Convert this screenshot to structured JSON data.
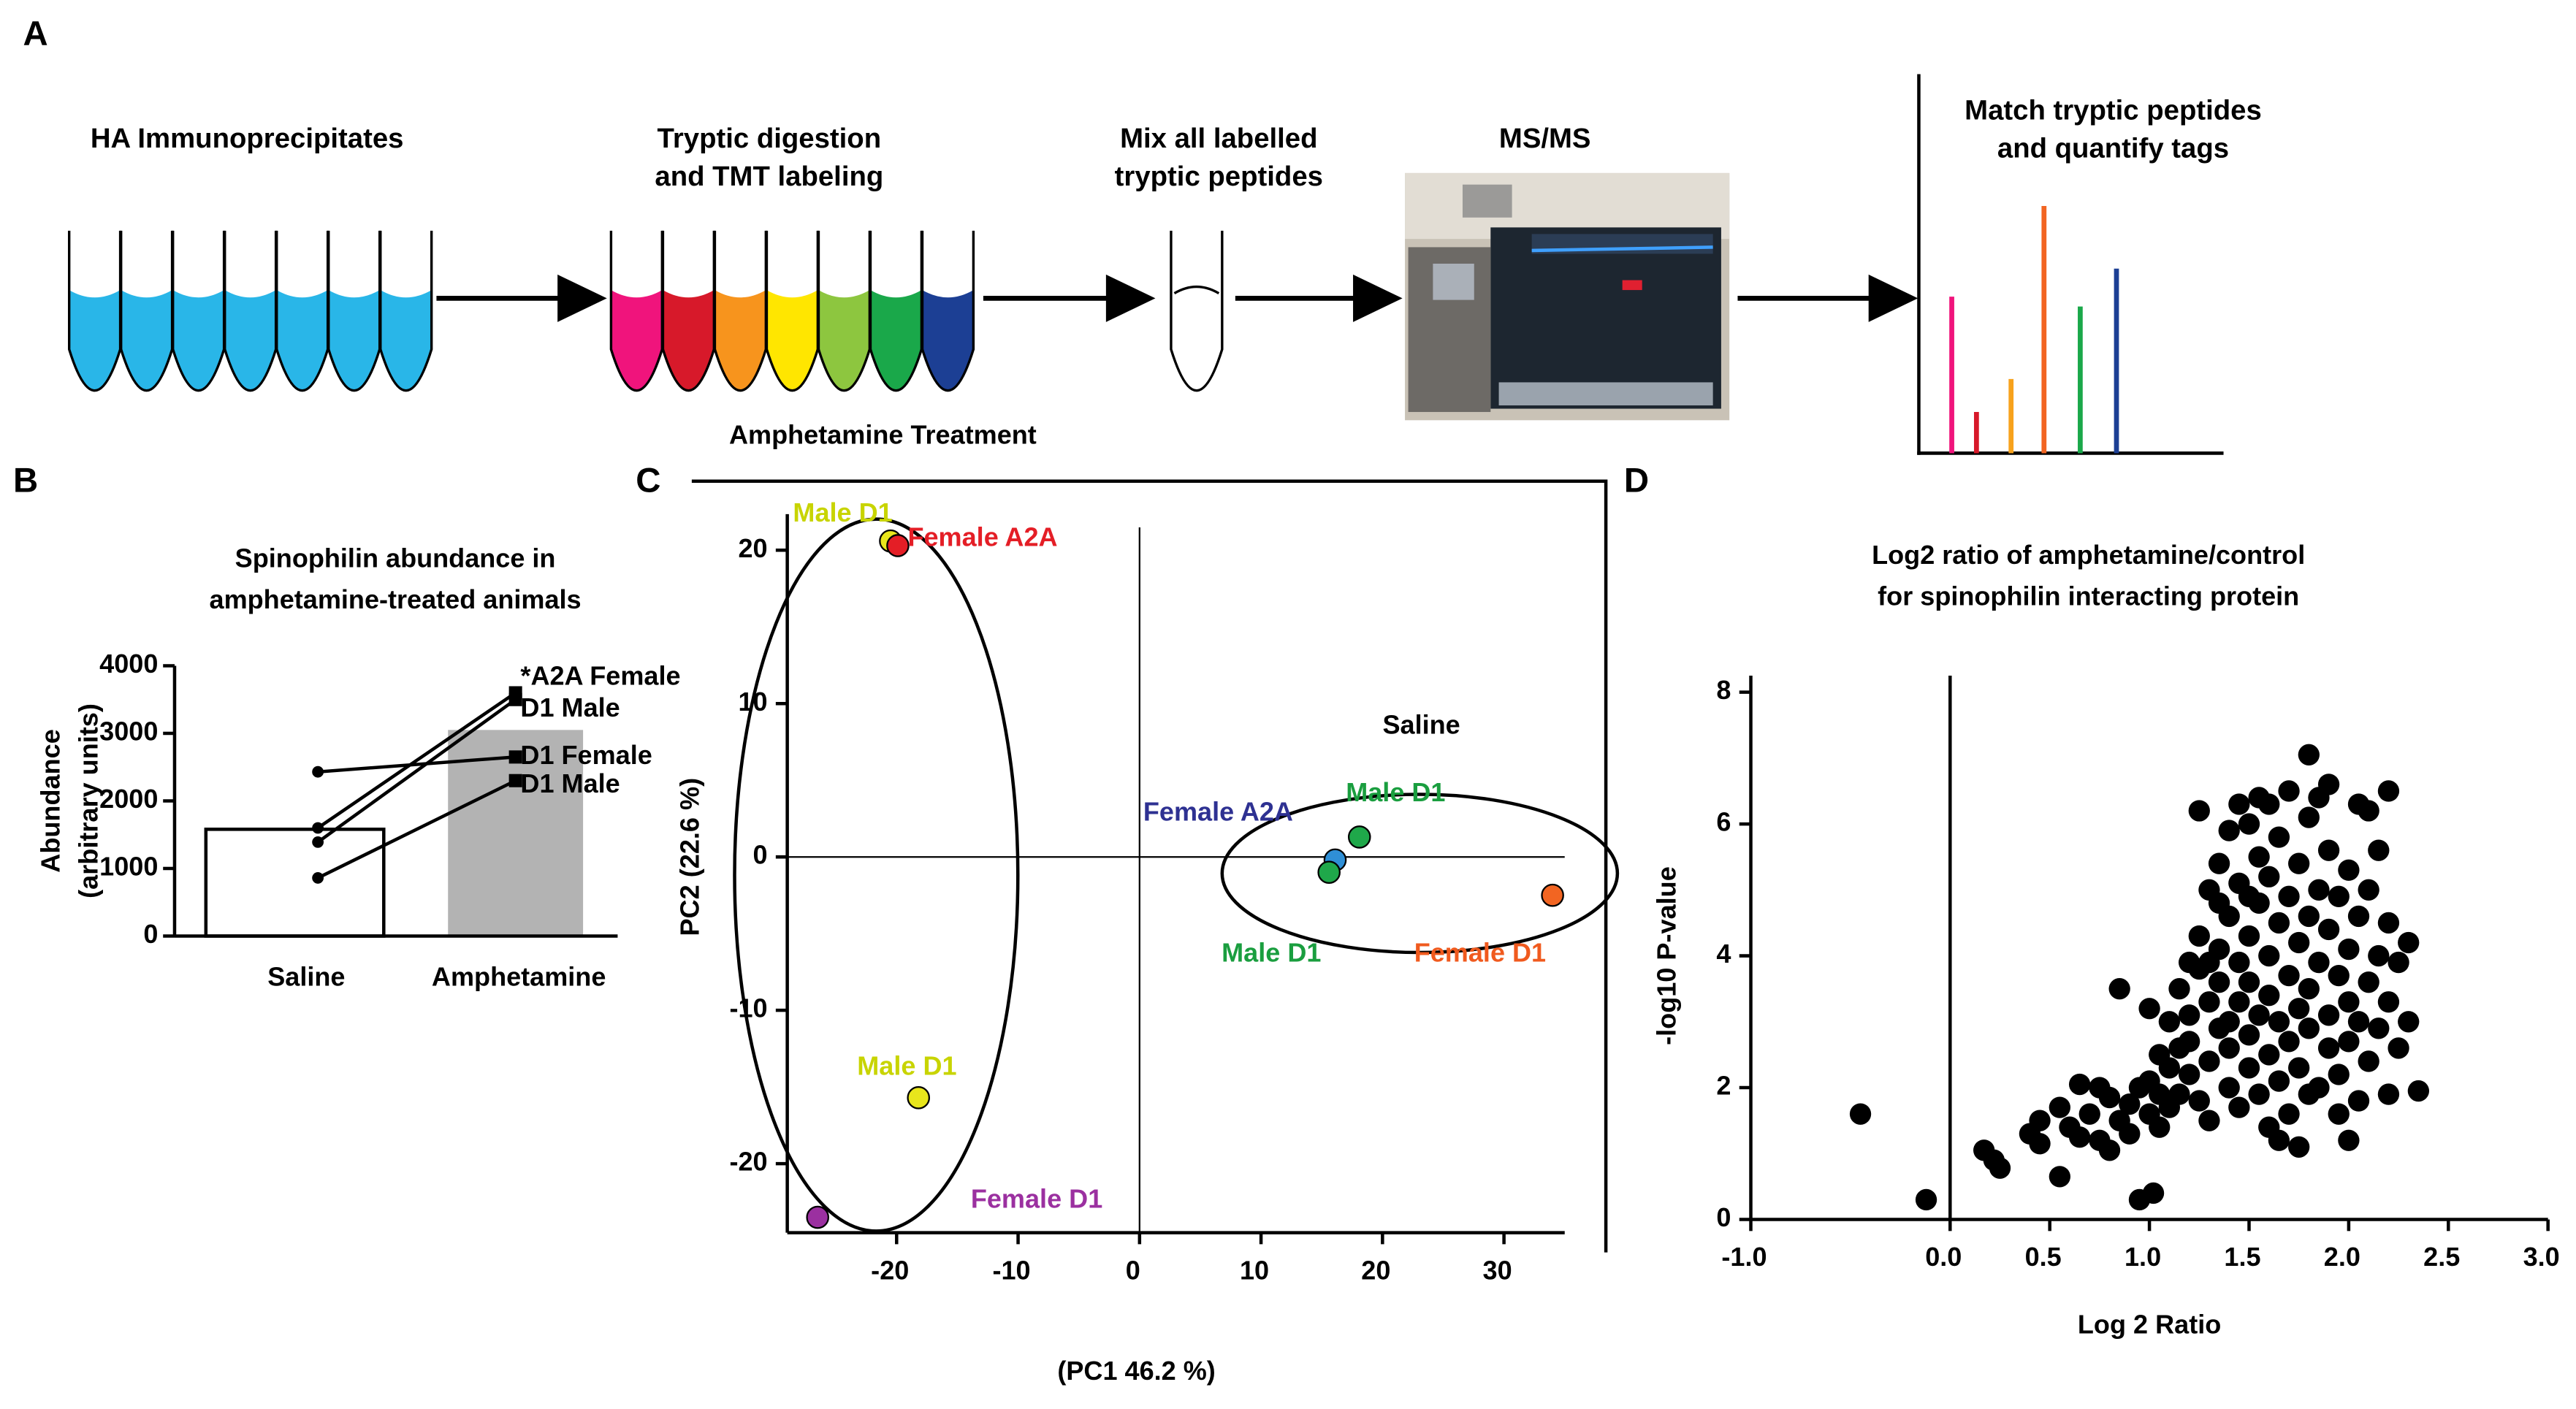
{
  "panel_labels": [
    "A",
    "B",
    "C",
    "D"
  ],
  "workflow": {
    "steps": [
      {
        "label": [
          "HA Immunoprecipitates"
        ]
      },
      {
        "label": [
          "Tryptic digestion",
          "and TMT labeling"
        ]
      },
      {
        "label": [
          "Mix all labelled",
          "tryptic peptides"
        ]
      },
      {
        "label": [
          "MS/MS"
        ]
      },
      {
        "label": [
          "Match tryptic peptides",
          "and quantify tags"
        ]
      }
    ]
  },
  "chart_data": [
    {
      "type": "bar",
      "title": [
        "Spinophilin abundance in",
        "amphetamine-treated animals"
      ],
      "ylabel": [
        "Abundance",
        "(arbitrary units)"
      ],
      "categories": [
        "Saline",
        "Amphetamine"
      ],
      "values": [
        1580,
        3050
      ],
      "colors": [
        "#ffffff",
        "#b3b3b3"
      ],
      "ylim": [
        0,
        4000
      ],
      "yticks": [
        0,
        1000,
        2000,
        3000,
        4000
      ],
      "series": [
        {
          "name": "*A2A Female",
          "values": [
            1600,
            3600
          ]
        },
        {
          "name": "D1 Male",
          "values": [
            1390,
            3500
          ]
        },
        {
          "name": "D1 Female",
          "values": [
            2430,
            2650
          ]
        },
        {
          "name": "D1 Male",
          "values": [
            860,
            2300
          ]
        }
      ]
    },
    {
      "type": "scatter",
      "xlabel": "(PC1 46.2 %)",
      "ylabel": "PC2 (22.6 %)",
      "annotations": [
        "Amphetamine Treatment",
        "Saline"
      ],
      "xlim": [
        -29,
        35
      ],
      "ylim": [
        -24.5,
        24.5
      ],
      "xticks": [
        -20,
        -10,
        0,
        10,
        20,
        30
      ],
      "yticks": [
        -20,
        -10,
        0,
        10,
        20
      ],
      "series": [
        {
          "name": "Male D1",
          "color": "#e8e61c",
          "label_color": "#c8d400",
          "x": [
            -20.5
          ],
          "y": [
            20.6
          ]
        },
        {
          "name": "Female A2A",
          "color": "#e41e26",
          "label_color": "#e41e26",
          "x": [
            -19.9
          ],
          "y": [
            20.3
          ]
        },
        {
          "name": "Female A2A",
          "color": "#2f8fd6",
          "label_color": "#2e3192",
          "x": [
            16.1
          ],
          "y": [
            -0.2
          ]
        },
        {
          "name": "Male D1",
          "color": "#1fa84a",
          "label_color": "#1a9e3f",
          "x": [
            18.1
          ],
          "y": [
            1.3
          ]
        },
        {
          "name": "Male D1",
          "color": "#1fa84a",
          "label_color": "#1a9e3f",
          "x": [
            15.6
          ],
          "y": [
            -1.0
          ]
        },
        {
          "name": "Female D1",
          "color": "#f26522",
          "label_color": "#f05a1e",
          "x": [
            34.0
          ],
          "y": [
            -2.5
          ]
        },
        {
          "name": "Male D1",
          "color": "#e8e61c",
          "label_color": "#c8d400",
          "x": [
            -18.2
          ],
          "y": [
            -15.7
          ]
        },
        {
          "name": "Female D1",
          "color": "#9b30a0",
          "label_color": "#9b30a0",
          "x": [
            -26.5
          ],
          "y": [
            -23.5
          ]
        }
      ]
    },
    {
      "type": "scatter",
      "title": [
        "Log2 ratio of amphetamine/control",
        "for spinophilin interacting protein"
      ],
      "xlabel": "Log 2 Ratio",
      "ylabel": "-log10 P-value",
      "xlim": [
        -1,
        3
      ],
      "ylim": [
        0,
        8
      ],
      "xticks": [
        {
          "value": -1,
          "label": "-1.0"
        },
        {
          "value": 0,
          "label": "0.0"
        },
        0.5,
        {
          "value": 1,
          "label": "1.0"
        },
        1.5,
        {
          "value": 2,
          "label": "2.0"
        },
        2.5,
        {
          "value": 3,
          "label": "3.0"
        }
      ],
      "yticks": [
        0,
        2,
        4,
        6,
        8
      ],
      "color": "#000000",
      "x": [
        -0.45,
        -0.12,
        0.17,
        0.22,
        0.25,
        0.45,
        0.55,
        0.95,
        1.02,
        0.8,
        0.4,
        0.45,
        0.55,
        0.6,
        0.65,
        0.7,
        0.75,
        0.8,
        0.85,
        0.9,
        0.9,
        0.95,
        1.0,
        1.0,
        1.05,
        1.05,
        1.1,
        1.1,
        1.15,
        1.15,
        0.85,
        1.0,
        1.05,
        1.1,
        0.75,
        0.65,
        1.2,
        1.2,
        1.2,
        1.25,
        1.25,
        1.25,
        1.3,
        1.3,
        1.3,
        1.3,
        1.35,
        1.35,
        1.35,
        1.35,
        1.4,
        1.4,
        1.4,
        1.4,
        1.4,
        1.45,
        1.45,
        1.45,
        1.45,
        1.5,
        1.5,
        1.5,
        1.5,
        1.5,
        1.55,
        1.55,
        1.55,
        1.55,
        1.6,
        1.6,
        1.6,
        1.6,
        1.6,
        1.65,
        1.65,
        1.65,
        1.65,
        1.7,
        1.7,
        1.7,
        1.7,
        1.7,
        1.75,
        1.75,
        1.75,
        1.75,
        1.8,
        1.8,
        1.8,
        1.8,
        1.85,
        1.85,
        1.85,
        1.85,
        1.9,
        1.9,
        1.9,
        1.9,
        1.95,
        1.95,
        1.95,
        2.0,
        2.0,
        2.0,
        2.0,
        2.05,
        2.05,
        2.05,
        2.1,
        2.1,
        2.1,
        2.15,
        2.15,
        2.2,
        2.2,
        2.25,
        2.25,
        2.3,
        2.3,
        2.15,
        1.45,
        1.55,
        1.9,
        2.1,
        1.25,
        1.35,
        1.2,
        1.15,
        1.3,
        1.5,
        1.6,
        1.8,
        1.65,
        1.95,
        2.2,
        1.75,
        2.0,
        2.35,
        1.8,
        2.05,
        2.2
      ],
      "y": [
        1.6,
        0.3,
        1.05,
        0.9,
        0.78,
        1.15,
        0.65,
        0.3,
        0.4,
        1.05,
        1.3,
        1.5,
        1.7,
        1.4,
        1.25,
        1.6,
        1.2,
        1.85,
        1.5,
        1.75,
        1.3,
        2.0,
        1.6,
        2.1,
        1.4,
        1.9,
        2.3,
        1.7,
        2.6,
        1.9,
        3.5,
        3.2,
        2.5,
        3.0,
        2.0,
        2.05,
        2.2,
        3.1,
        2.7,
        3.8,
        1.8,
        4.3,
        2.4,
        3.3,
        5.0,
        1.5,
        2.9,
        4.1,
        5.4,
        3.6,
        2.0,
        3.0,
        4.6,
        5.9,
        2.6,
        3.9,
        1.7,
        5.1,
        3.3,
        2.3,
        4.3,
        6.0,
        3.6,
        2.8,
        5.5,
        1.9,
        4.8,
        3.1,
        2.5,
        4.0,
        6.3,
        3.4,
        5.2,
        2.1,
        4.5,
        3.0,
        5.8,
        2.7,
        3.7,
        6.5,
        4.9,
        1.6,
        3.2,
        5.4,
        4.2,
        2.3,
        2.9,
        4.6,
        6.1,
        3.5,
        2.0,
        5.0,
        3.9,
        6.4,
        2.6,
        4.4,
        3.1,
        5.6,
        3.7,
        2.2,
        4.9,
        3.3,
        5.3,
        2.7,
        4.1,
        3.0,
        4.6,
        1.8,
        3.6,
        2.4,
        5.0,
        4.0,
        2.9,
        3.3,
        4.5,
        2.6,
        3.9,
        4.2,
        3.0,
        5.6,
        6.3,
        6.4,
        6.6,
        6.2,
        6.2,
        4.8,
        3.9,
        3.5,
        3.9,
        4.9,
        1.4,
        1.9,
        1.2,
        1.6,
        1.9,
        1.1,
        1.2,
        1.95,
        7.05,
        6.3,
        6.5
      ]
    }
  ]
}
